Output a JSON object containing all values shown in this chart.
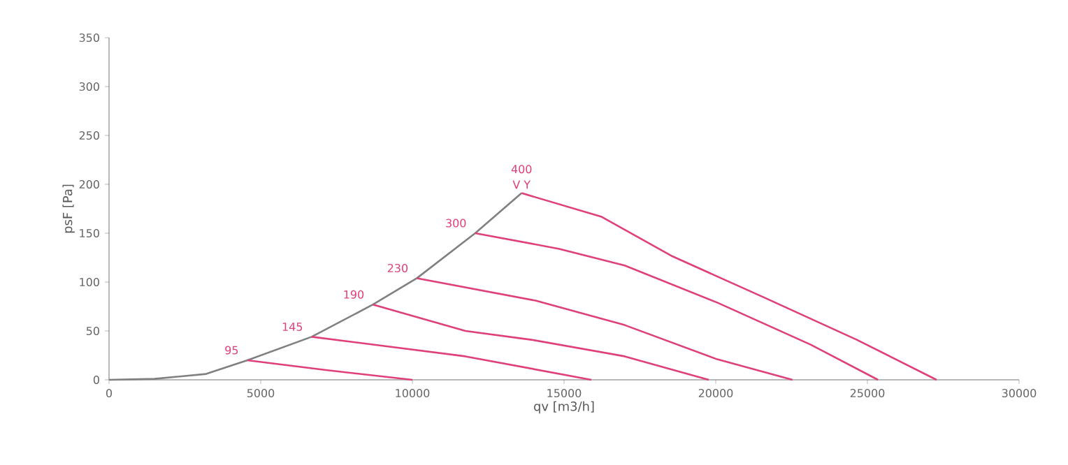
{
  "chart_data": {
    "type": "line",
    "xlabel": "qv [m3/h]",
    "ylabel": "psF [Pa]",
    "xlim": [
      0,
      30000
    ],
    "ylim": [
      0,
      350
    ],
    "xticks": [
      0,
      5000,
      10000,
      15000,
      20000,
      25000,
      30000
    ],
    "yticks": [
      0,
      50,
      100,
      150,
      200,
      250,
      300,
      350
    ],
    "grid": false,
    "marker": "none",
    "line_style": "solid",
    "series": [
      {
        "color": "#808080",
        "x": [
          0,
          1500,
          3200,
          4560,
          6680,
          8700,
          10150,
          12070,
          13600
        ],
        "values": [
          0,
          1,
          6,
          20,
          44,
          77,
          104,
          150,
          191
        ]
      },
      {
        "name": "95",
        "color": "#e0407a",
        "x": [
          4560,
          7150,
          10000
        ],
        "values": [
          20,
          10,
          0
        ]
      },
      {
        "name": "145",
        "color": "#e0407a",
        "x": [
          6680,
          11750,
          15900
        ],
        "values": [
          44,
          24,
          0
        ]
      },
      {
        "name": "190",
        "color": "#e0407a",
        "x": [
          8700,
          11750,
          13920,
          17000,
          19770
        ],
        "values": [
          77,
          50,
          41,
          24,
          0
        ]
      },
      {
        "name": "230",
        "color": "#e0407a",
        "x": [
          10150,
          14060,
          17000,
          20050,
          22530
        ],
        "values": [
          104,
          81,
          56,
          21,
          0
        ]
      },
      {
        "name": "300",
        "color": "#e0407a",
        "x": [
          12070,
          14840,
          17000,
          20050,
          23130,
          25350
        ],
        "values": [
          150,
          134,
          117,
          79,
          36,
          0
        ]
      },
      {
        "name": "400",
        "color": "#e0407a",
        "x": [
          13600,
          16220,
          18530,
          21610,
          24650,
          27280
        ],
        "values": [
          191,
          167,
          127,
          84,
          41,
          0
        ]
      }
    ],
    "annotations": [
      "V Y"
    ]
  }
}
